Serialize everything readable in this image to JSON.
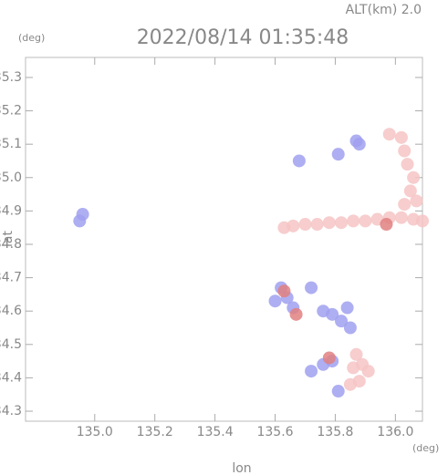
{
  "chart_data": {
    "type": "scatter",
    "title": "2022/08/14 01:35:48",
    "subtitle": "ALT(km) 2.0",
    "y_unit": "(deg)",
    "x_unit": "(deg)",
    "x_label": "lon",
    "y_label": "lat",
    "xlim": [
      134.77,
      136.09
    ],
    "ylim": [
      34.27,
      35.36
    ],
    "xticks": [
      {
        "value": 135,
        "label": "135.0"
      },
      135.2,
      135.4,
      135.6,
      135.8,
      {
        "value": 136,
        "label": "136.0"
      }
    ],
    "yticks": [
      34.3,
      34.4,
      34.5,
      34.6,
      34.7,
      34.8,
      34.9,
      {
        "value": 35,
        "label": "35.0"
      },
      35.1,
      35.2,
      35.3
    ],
    "series": [
      {
        "color": "#f6c4c4",
        "x": [
          135.63,
          135.66,
          135.7,
          135.74,
          135.78,
          135.82,
          135.86,
          135.9,
          135.94,
          135.98,
          136.02,
          136.06,
          136.09,
          136.03,
          136.05,
          136.06,
          136.04,
          136.03,
          136.02,
          135.98,
          136.07,
          135.86,
          135.89,
          135.91,
          135.88,
          135.85,
          135.87
        ],
        "y": [
          34.85,
          34.855,
          34.86,
          34.86,
          34.865,
          34.865,
          34.87,
          34.87,
          34.875,
          34.88,
          34.88,
          34.875,
          34.87,
          34.92,
          34.96,
          35.0,
          35.04,
          35.08,
          35.12,
          35.13,
          34.93,
          34.43,
          34.44,
          34.42,
          34.39,
          34.38,
          34.47
        ]
      },
      {
        "color": "#a0a0f0",
        "x": [
          134.96,
          134.95,
          135.87,
          135.88,
          135.81,
          135.68,
          135.62,
          135.64,
          135.66,
          135.6,
          135.72,
          135.76,
          135.79,
          135.82,
          135.84,
          135.76,
          135.79,
          135.72,
          135.81,
          135.85
        ],
        "y": [
          34.89,
          34.87,
          35.11,
          35.1,
          35.07,
          35.05,
          34.67,
          34.64,
          34.61,
          34.63,
          34.67,
          34.6,
          34.59,
          34.57,
          34.61,
          34.44,
          34.45,
          34.42,
          34.36,
          34.55
        ]
      },
      {
        "color": "#e08080",
        "x": [
          135.63,
          135.67,
          135.78,
          135.97
        ],
        "y": [
          34.66,
          34.59,
          34.46,
          34.86
        ]
      }
    ]
  }
}
